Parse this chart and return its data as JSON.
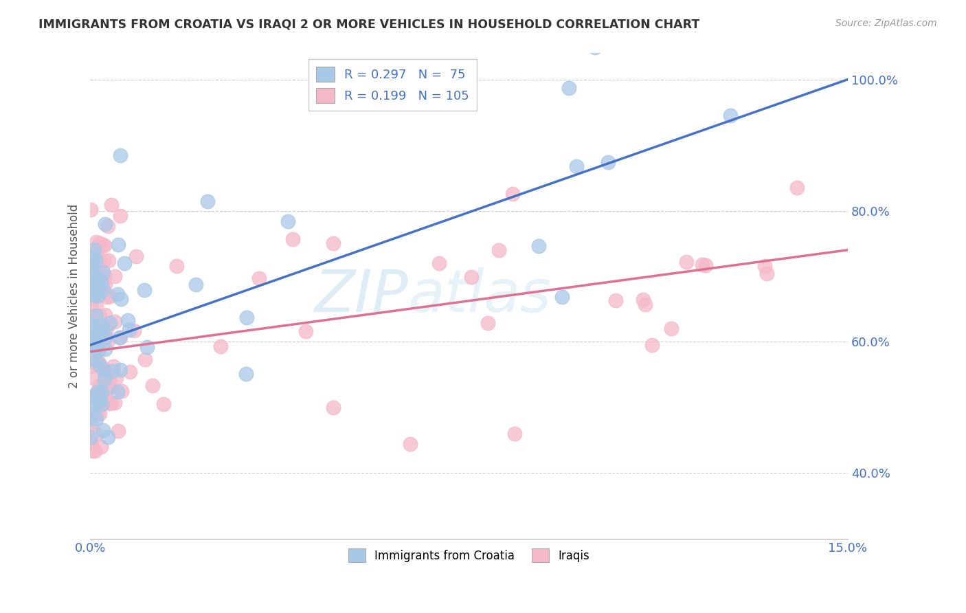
{
  "title": "IMMIGRANTS FROM CROATIA VS IRAQI 2 OR MORE VEHICLES IN HOUSEHOLD CORRELATION CHART",
  "source": "Source: ZipAtlas.com",
  "ylabel_label": "2 or more Vehicles in Household",
  "xmin": 0.0,
  "xmax": 0.15,
  "ymin": 0.3,
  "ymax": 1.04,
  "color_croatia": "#a8c8e8",
  "color_iraqi": "#f5b8c8",
  "line_color_croatia": "#4472C4",
  "line_color_iraqi": "#e07090",
  "tick_color": "#4472C4",
  "watermark_color": "#c8e0f0",
  "N_croatia": 75,
  "N_iraqi": 105,
  "croatia_line_x0": 0.0,
  "croatia_line_y0": 0.595,
  "croatia_line_x1": 0.15,
  "croatia_line_y1": 1.0,
  "iraqi_line_x0": 0.0,
  "iraqi_line_y0": 0.585,
  "iraqi_line_x1": 0.15,
  "iraqi_line_y1": 0.74,
  "legend1_text": "R = 0.297   N =  75",
  "legend2_text": "R = 0.199   N = 105",
  "bottom_legend1": "Immigrants from Croatia",
  "bottom_legend2": "Iraqis"
}
